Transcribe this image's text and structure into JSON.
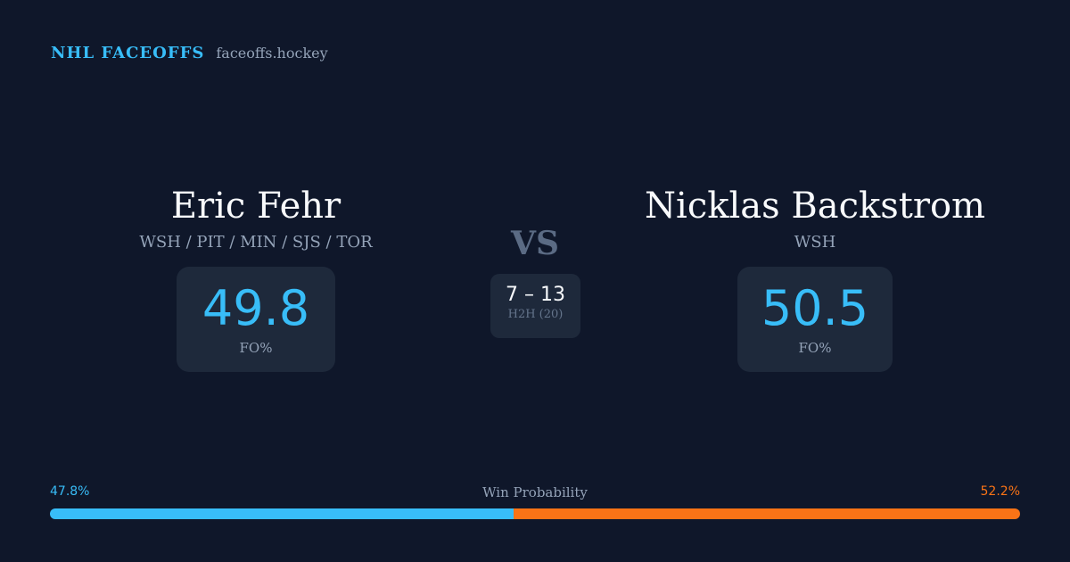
{
  "brand": {
    "name": "NHL FACEOFFS",
    "url": "faceoffs.hockey"
  },
  "player1": {
    "name": "Eric Fehr",
    "teams": "WSH / PIT / MIN / SJS / TOR",
    "fo_pct": "49.8",
    "fo_label": "FO%"
  },
  "player2": {
    "name": "Nicklas Backstrom",
    "teams": "WSH",
    "fo_pct": "50.5",
    "fo_label": "FO%"
  },
  "vs": "VS",
  "h2h": {
    "score": "7 – 13",
    "label": "H2H (20)"
  },
  "win_probability": {
    "label": "Win Probability",
    "p1": "47.8%",
    "p2": "52.2%",
    "p1_value": 47.8,
    "p2_value": 52.2,
    "p1_color": "#38bdf8",
    "p2_color": "#f97316"
  }
}
